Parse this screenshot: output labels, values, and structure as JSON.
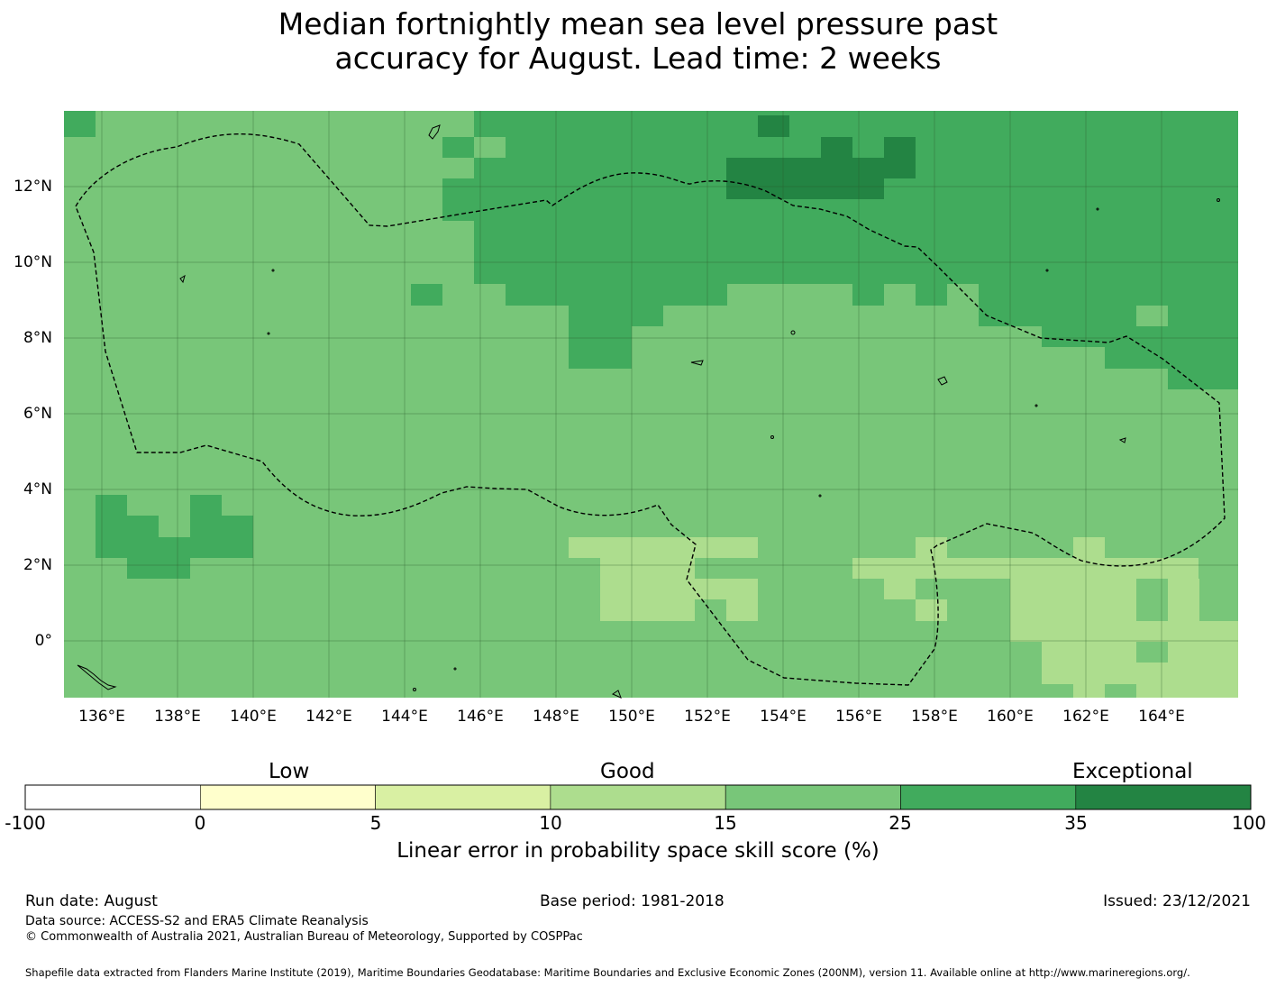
{
  "title_line1": "Median fortnightly mean sea level pressure past",
  "title_line2": "accuracy for August. Lead time: 2 weeks",
  "map": {
    "lon_labels": [
      "136°E",
      "138°E",
      "140°E",
      "142°E",
      "144°E",
      "146°E",
      "148°E",
      "150°E",
      "152°E",
      "154°E",
      "156°E",
      "158°E",
      "160°E",
      "162°E",
      "164°E"
    ],
    "lat_labels": [
      "12°N",
      "10°N",
      "8°N",
      "6°N",
      "4°N",
      "2°N",
      "0°"
    ],
    "extent": {
      "lon_min": 135.0,
      "lon_max": 166.0,
      "lat_min": -1.5,
      "lat_max": 14.0
    }
  },
  "colorbar": {
    "category_labels": [
      "Low",
      "Good",
      "Exceptional"
    ],
    "ticks": [
      "-100",
      "0",
      "5",
      "10",
      "15",
      "25",
      "35",
      "100"
    ],
    "colors": [
      "#ffffff",
      "#ffffcc",
      "#d9f0a3",
      "#addd8e",
      "#78c679",
      "#41ab5d",
      "#238443"
    ],
    "axis_label": "Linear error in probability space skill score (%)"
  },
  "footer": {
    "run_date": "Run date: August",
    "base_period": "Base period: 1981-2018",
    "issued": "Issued: 23/12/2021",
    "data_source": "Data source: ACCESS-S2 and ERA5 Climate Reanalysis",
    "copyright": "© Commonwealth of Australia 2021, Australian Bureau of Meteorology, Supported by COSPPac",
    "shapefile": "Shapefile data extracted from Flanders Marine Institute (2019), Maritime Boundaries Geodatabase: Maritime Boundaries and Exclusive Economic Zones (200NM), version 11. Available online at http://www.marineregions.org/."
  }
}
